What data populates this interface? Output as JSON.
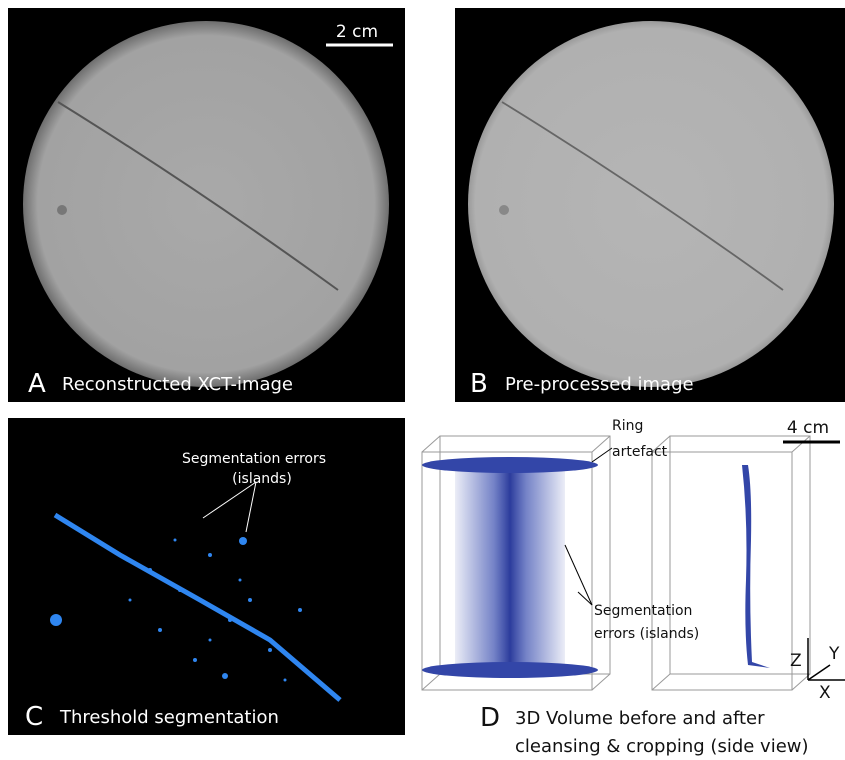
{
  "panels": [
    {
      "letter": "A",
      "caption": "Reconstructed XCT-image",
      "scale_bar": "2 cm"
    },
    {
      "letter": "B",
      "caption": "Pre-processed image"
    },
    {
      "letter": "C",
      "caption": "Threshold segmentation",
      "annotation": [
        "Segmentation errors",
        "(islands)"
      ]
    },
    {
      "letter": "D",
      "caption": [
        "3D Volume before and after",
        "cleansing & cropping (side view)"
      ],
      "scale_bar": "4 cm",
      "annotations": [
        [
          "Ring",
          "artefact"
        ],
        [
          "Segmentation",
          "errors (islands)"
        ]
      ],
      "axes": [
        "Z",
        "Y",
        "X"
      ]
    }
  ]
}
